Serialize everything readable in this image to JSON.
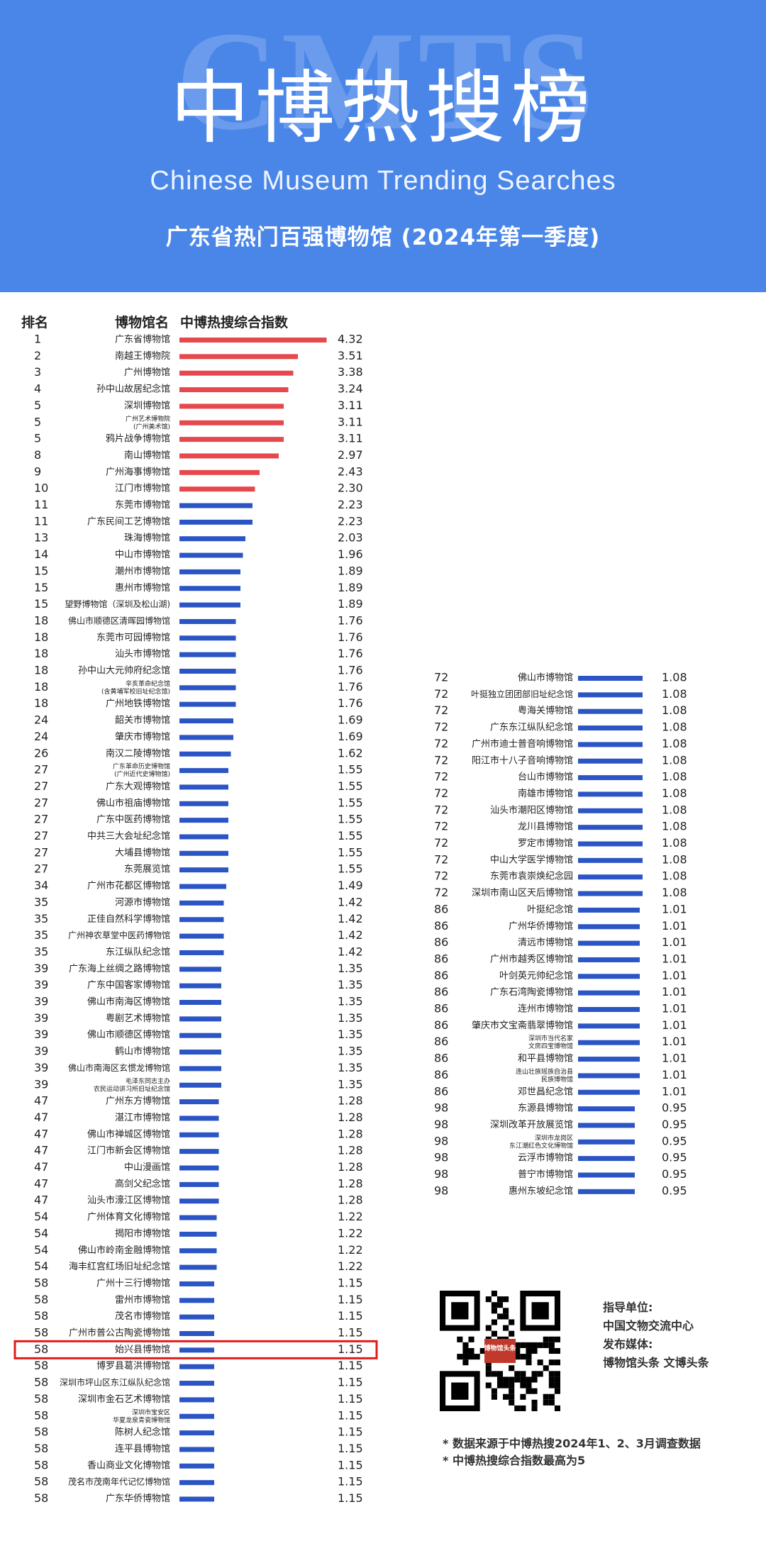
{
  "header": {
    "watermark": "CMTS",
    "title_zh": "中博热搜榜",
    "title_en": "Chinese Museum Trending Searches",
    "subtitle": "广东省热门百强博物馆 (2024年第一季度)"
  },
  "colors": {
    "banner": "#4a86e8",
    "top_bar": "#e5484d",
    "bar": "#2b55c4",
    "highlight_box": "#e01b1b"
  },
  "chart_data": {
    "type": "bar",
    "title": "广东省热门百强博物馆 (2024年第一季度)",
    "column_headers": {
      "rank": "排名",
      "name": "博物馆名",
      "index": "中博热搜综合指数"
    },
    "highlighted_rank_row": "58 始兴县博物馆",
    "left_column": [
      {
        "rank": "1",
        "name": "广东省博物馆",
        "value": "4.32"
      },
      {
        "rank": "2",
        "name": "南越王博物院",
        "value": "3.51"
      },
      {
        "rank": "3",
        "name": "广州博物馆",
        "value": "3.38"
      },
      {
        "rank": "4",
        "name": "孙中山故居纪念馆",
        "value": "3.24"
      },
      {
        "rank": "5",
        "name": "深圳博物馆",
        "value": "3.11"
      },
      {
        "rank": "5",
        "name": "广州艺术博物院|(广州美术馆)",
        "value": "3.11"
      },
      {
        "rank": "5",
        "name": "鸦片战争博物馆",
        "value": "3.11"
      },
      {
        "rank": "8",
        "name": "南山博物馆",
        "value": "2.97"
      },
      {
        "rank": "9",
        "name": "广州海事博物馆",
        "value": "2.43"
      },
      {
        "rank": "10",
        "name": "江门市博物馆",
        "value": "2.30"
      },
      {
        "rank": "11",
        "name": "东莞市博物馆",
        "value": "2.23"
      },
      {
        "rank": "11",
        "name": "广东民间工艺博物馆",
        "value": "2.23"
      },
      {
        "rank": "13",
        "name": "珠海博物馆",
        "value": "2.03"
      },
      {
        "rank": "14",
        "name": "中山市博物馆",
        "value": "1.96"
      },
      {
        "rank": "15",
        "name": "潮州市博物馆",
        "value": "1.89"
      },
      {
        "rank": "15",
        "name": "惠州市博物馆",
        "value": "1.89"
      },
      {
        "rank": "15",
        "name": "望野博物馆（深圳及松山湖)",
        "value": "1.89"
      },
      {
        "rank": "18",
        "name": "佛山市顺德区清晖园博物馆",
        "value": "1.76"
      },
      {
        "rank": "18",
        "name": "东莞市可园博物馆",
        "value": "1.76"
      },
      {
        "rank": "18",
        "name": "汕头市博物馆",
        "value": "1.76"
      },
      {
        "rank": "18",
        "name": "孙中山大元帅府纪念馆",
        "value": "1.76"
      },
      {
        "rank": "18",
        "name": "辛亥革命纪念馆|(含黄埔军校旧址纪念馆)",
        "value": "1.76"
      },
      {
        "rank": "18",
        "name": "广州地铁博物馆",
        "value": "1.76"
      },
      {
        "rank": "24",
        "name": "韶关市博物馆",
        "value": "1.69"
      },
      {
        "rank": "24",
        "name": "肇庆市博物馆",
        "value": "1.69"
      },
      {
        "rank": "26",
        "name": "南汉二陵博物馆",
        "value": "1.62"
      },
      {
        "rank": "27",
        "name": "广东革命历史博物馆|(广州近代史博物馆)",
        "value": "1.55"
      },
      {
        "rank": "27",
        "name": "广东大观博物馆",
        "value": "1.55"
      },
      {
        "rank": "27",
        "name": "佛山市祖庙博物馆",
        "value": "1.55"
      },
      {
        "rank": "27",
        "name": "广东中医药博物馆",
        "value": "1.55"
      },
      {
        "rank": "27",
        "name": "中共三大会址纪念馆",
        "value": "1.55"
      },
      {
        "rank": "27",
        "name": "大埔县博物馆",
        "value": "1.55"
      },
      {
        "rank": "27",
        "name": "东莞展览馆",
        "value": "1.55"
      },
      {
        "rank": "34",
        "name": "广州市花都区博物馆",
        "value": "1.49"
      },
      {
        "rank": "35",
        "name": "河源市博物馆",
        "value": "1.42"
      },
      {
        "rank": "35",
        "name": "正佳自然科学博物馆",
        "value": "1.42"
      },
      {
        "rank": "35",
        "name": "广州神农草堂中医药博物馆",
        "value": "1.42"
      },
      {
        "rank": "35",
        "name": "东江纵队纪念馆",
        "value": "1.42"
      },
      {
        "rank": "39",
        "name": "广东海上丝绸之路博物馆",
        "value": "1.35"
      },
      {
        "rank": "39",
        "name": "广东中国客家博物馆",
        "value": "1.35"
      },
      {
        "rank": "39",
        "name": "佛山市南海区博物馆",
        "value": "1.35"
      },
      {
        "rank": "39",
        "name": "粤剧艺术博物馆",
        "value": "1.35"
      },
      {
        "rank": "39",
        "name": "佛山市顺德区博物馆",
        "value": "1.35"
      },
      {
        "rank": "39",
        "name": "鹤山市博物馆",
        "value": "1.35"
      },
      {
        "rank": "39",
        "name": "佛山市南海区玄惯龙博物馆",
        "value": "1.35"
      },
      {
        "rank": "39",
        "name": "毛泽东同志主办|农民运动讲习所旧址纪念馆",
        "value": "1.35"
      },
      {
        "rank": "47",
        "name": "广州东方博物馆",
        "value": "1.28"
      },
      {
        "rank": "47",
        "name": "湛江市博物馆",
        "value": "1.28"
      },
      {
        "rank": "47",
        "name": "佛山市禅城区博物馆",
        "value": "1.28"
      },
      {
        "rank": "47",
        "name": "江门市新会区博物馆",
        "value": "1.28"
      },
      {
        "rank": "47",
        "name": "中山漫画馆",
        "value": "1.28"
      },
      {
        "rank": "47",
        "name": "高剑父纪念馆",
        "value": "1.28"
      },
      {
        "rank": "47",
        "name": "汕头市濠江区博物馆",
        "value": "1.28"
      },
      {
        "rank": "54",
        "name": "广州体育文化博物馆",
        "value": "1.22"
      },
      {
        "rank": "54",
        "name": "揭阳市博物馆",
        "value": "1.22"
      },
      {
        "rank": "54",
        "name": "佛山市岭南金融博物馆",
        "value": "1.22"
      },
      {
        "rank": "54",
        "name": "海丰红宫红场旧址纪念馆",
        "value": "1.22"
      },
      {
        "rank": "58",
        "name": "广州十三行博物馆",
        "value": "1.15"
      },
      {
        "rank": "58",
        "name": "雷州市博物馆",
        "value": "1.15"
      },
      {
        "rank": "58",
        "name": "茂名市博物馆",
        "value": "1.15"
      },
      {
        "rank": "58",
        "name": "广州市普公古陶瓷博物馆",
        "value": "1.15"
      },
      {
        "rank": "58",
        "name": "始兴县博物馆",
        "value": "1.15"
      },
      {
        "rank": "58",
        "name": "博罗县葛洪博物馆",
        "value": "1.15"
      },
      {
        "rank": "58",
        "name": "深圳市坪山区东江纵队纪念馆",
        "value": "1.15"
      },
      {
        "rank": "58",
        "name": "深圳市金石艺术博物馆",
        "value": "1.15"
      },
      {
        "rank": "58",
        "name": "深圳市宝安区|华夏龙泉青瓷博物馆",
        "value": "1.15"
      },
      {
        "rank": "58",
        "name": "陈树人纪念馆",
        "value": "1.15"
      },
      {
        "rank": "58",
        "name": "连平县博物馆",
        "value": "1.15"
      },
      {
        "rank": "58",
        "name": "香山商业文化博物馆",
        "value": "1.15"
      },
      {
        "rank": "58",
        "name": "茂名市茂南年代记忆博物馆",
        "value": "1.15"
      },
      {
        "rank": "58",
        "name": "广东华侨博物馆",
        "value": "1.15"
      }
    ],
    "right_column": [
      {
        "rank": "72",
        "name": "佛山市博物馆",
        "value": "1.08"
      },
      {
        "rank": "72",
        "name": "叶挺独立团团部旧址纪念馆",
        "value": "1.08"
      },
      {
        "rank": "72",
        "name": "粤海关博物馆",
        "value": "1.08"
      },
      {
        "rank": "72",
        "name": "广东东江纵队纪念馆",
        "value": "1.08"
      },
      {
        "rank": "72",
        "name": "广州市迪士普音响博物馆",
        "value": "1.08"
      },
      {
        "rank": "72",
        "name": "阳江市十八子音响博物馆",
        "value": "1.08"
      },
      {
        "rank": "72",
        "name": "台山市博物馆",
        "value": "1.08"
      },
      {
        "rank": "72",
        "name": "南雄市博物馆",
        "value": "1.08"
      },
      {
        "rank": "72",
        "name": "汕头市潮阳区博物馆",
        "value": "1.08"
      },
      {
        "rank": "72",
        "name": "龙川县博物馆",
        "value": "1.08"
      },
      {
        "rank": "72",
        "name": "罗定市博物馆",
        "value": "1.08"
      },
      {
        "rank": "72",
        "name": "中山大学医学博物馆",
        "value": "1.08"
      },
      {
        "rank": "72",
        "name": "东莞市袁崇焕纪念园",
        "value": "1.08"
      },
      {
        "rank": "72",
        "name": "深圳市南山区天后博物馆",
        "value": "1.08"
      },
      {
        "rank": "86",
        "name": "叶挺纪念馆",
        "value": "1.01"
      },
      {
        "rank": "86",
        "name": "广州华侨博物馆",
        "value": "1.01"
      },
      {
        "rank": "86",
        "name": "清远市博物馆",
        "value": "1.01"
      },
      {
        "rank": "86",
        "name": "广州市越秀区博物馆",
        "value": "1.01"
      },
      {
        "rank": "86",
        "name": "叶剑英元帅纪念馆",
        "value": "1.01"
      },
      {
        "rank": "86",
        "name": "广东石湾陶瓷博物馆",
        "value": "1.01"
      },
      {
        "rank": "86",
        "name": "连州市博物馆",
        "value": "1.01"
      },
      {
        "rank": "86",
        "name": "肇庆市文宝斋翡翠博物馆",
        "value": "1.01"
      },
      {
        "rank": "86",
        "name": "深圳市当代名家|文房四宝博物馆",
        "value": "1.01"
      },
      {
        "rank": "86",
        "name": "和平县博物馆",
        "value": "1.01"
      },
      {
        "rank": "86",
        "name": "连山壮族瑶族自治县|民族博物馆",
        "value": "1.01"
      },
      {
        "rank": "86",
        "name": "邓世昌纪念馆",
        "value": "1.01"
      },
      {
        "rank": "98",
        "name": "东源县博物馆",
        "value": "0.95"
      },
      {
        "rank": "98",
        "name": "深圳改革开放展览馆",
        "value": "0.95"
      },
      {
        "rank": "98",
        "name": "深圳市龙岗区|东江潮红色文化博物馆",
        "value": "0.95"
      },
      {
        "rank": "98",
        "name": "云浮市博物馆",
        "value": "0.95"
      },
      {
        "rank": "98",
        "name": "普宁市博物馆",
        "value": "0.95"
      },
      {
        "rank": "98",
        "name": "惠州东坡纪念馆",
        "value": "0.95"
      }
    ]
  },
  "footer": {
    "qr_label": "博物馆头条",
    "guide_label": "指导单位:",
    "guide_value": "中国文物交流中心",
    "media_label": "发布媒体:",
    "media_value": "博物馆头条 文博头条",
    "note1": "* 数据来源于中博热搜2024年1、2、3月调查数据",
    "note2": "* 中博热搜综合指数最高为5"
  }
}
